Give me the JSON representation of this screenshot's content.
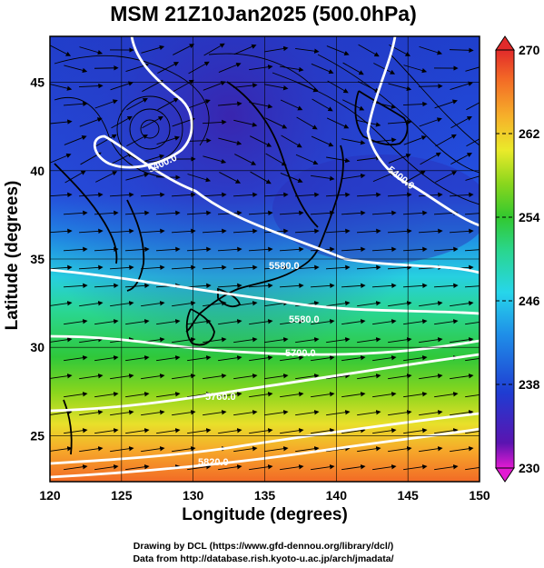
{
  "title": "MSM 21Z10Jan2025 (500.0hPa)",
  "xaxis": {
    "label": "Longitude (degrees)",
    "range": [
      120,
      150
    ],
    "ticks": [
      "120",
      "125",
      "130",
      "135",
      "140",
      "145",
      "150"
    ]
  },
  "yaxis": {
    "label": "Latitude  (degrees)",
    "range": [
      22.4,
      47.6
    ],
    "ticks": [
      "25",
      "30",
      "35",
      "40",
      "45"
    ]
  },
  "colorbar": {
    "ticks": [
      "270",
      "262",
      "254",
      "246",
      "238",
      "230"
    ],
    "range": [
      230,
      270
    ],
    "colors": [
      "#e21ad2",
      "#3d0fa8",
      "#1f3cd2",
      "#1f8fe8",
      "#27d6ea",
      "#2ad68e",
      "#32c82f",
      "#8ad61d",
      "#eaea2a",
      "#f6b12a",
      "#f36a26",
      "#e22a2a"
    ]
  },
  "contours": [
    {
      "label": "5400.0"
    },
    {
      "label": "5400.0"
    },
    {
      "label": "5580.0"
    },
    {
      "label": "5580.0"
    },
    {
      "label": "5700.0"
    },
    {
      "label": "5760.0"
    },
    {
      "label": "5820.0"
    }
  ],
  "credits": {
    "line1": "Drawing by DCL (https://www.gfd-dennou.org/library/dcl/)",
    "line2": "Data from http://database.rish.kyoto-u.ac.jp/arch/jmadata/"
  }
}
